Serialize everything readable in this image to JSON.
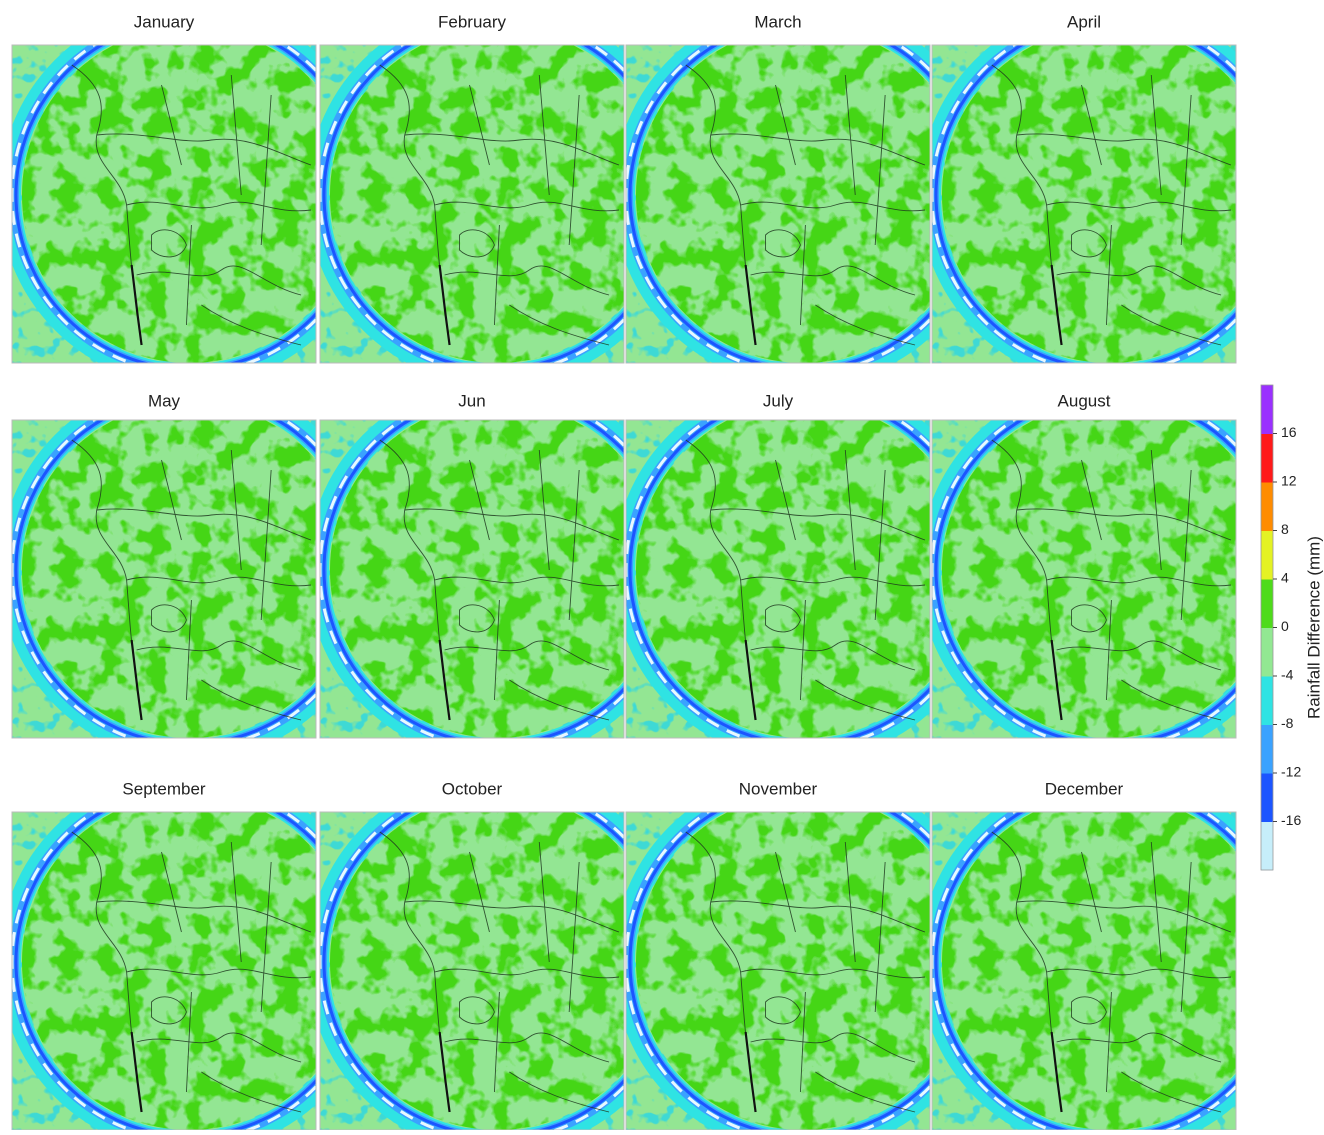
{
  "panels": [
    {
      "title": "January"
    },
    {
      "title": "February"
    },
    {
      "title": "March"
    },
    {
      "title": "April"
    },
    {
      "title": "May"
    },
    {
      "title": "Jun"
    },
    {
      "title": "July"
    },
    {
      "title": "August"
    },
    {
      "title": "September"
    },
    {
      "title": "October"
    },
    {
      "title": "November"
    },
    {
      "title": "December"
    }
  ],
  "colorbar": {
    "label": "Rainfall Difference (mm)",
    "lim": [
      -20,
      20
    ],
    "ticks": [
      -16,
      -12,
      -8,
      -4,
      0,
      4,
      8,
      12,
      16
    ],
    "colors": [
      "#c6eefa",
      "#1c55ff",
      "#3aa2ff",
      "#2fe3e3",
      "#92e892",
      "#4edb1b",
      "#e4f224",
      "#ff8c00",
      "#ff1a1a",
      "#9a30ff"
    ]
  }
}
